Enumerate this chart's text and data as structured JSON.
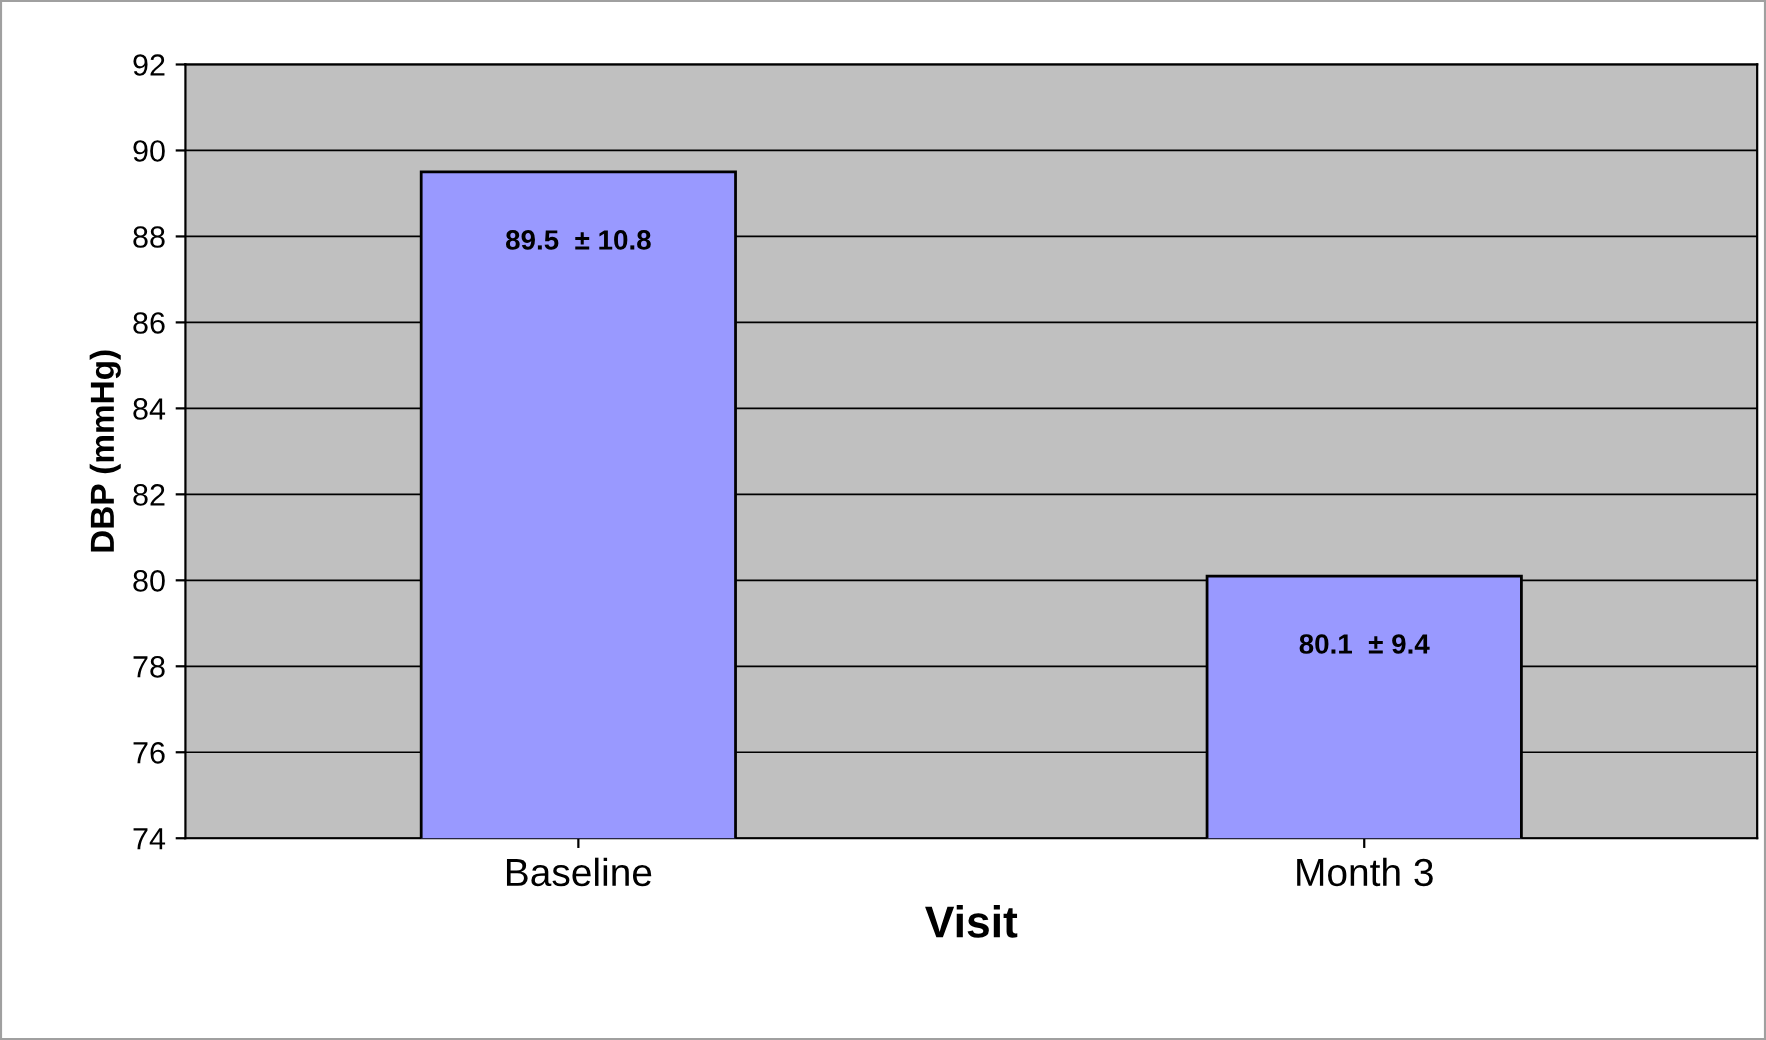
{
  "chart_data": {
    "type": "bar",
    "xlabel": "Visit",
    "ylabel": "DBP (mmHg)",
    "categories": [
      "Baseline",
      "Month 3"
    ],
    "values": [
      89.5,
      80.1
    ],
    "value_labels": [
      "89.5  ± 10.8",
      "80.1  ± 9.4"
    ],
    "color": "#9999ff",
    "ylim": [
      74,
      92
    ],
    "yticks": [
      74,
      76,
      78,
      80,
      82,
      84,
      86,
      88,
      90,
      92
    ],
    "grid": "y",
    "legend": false
  }
}
